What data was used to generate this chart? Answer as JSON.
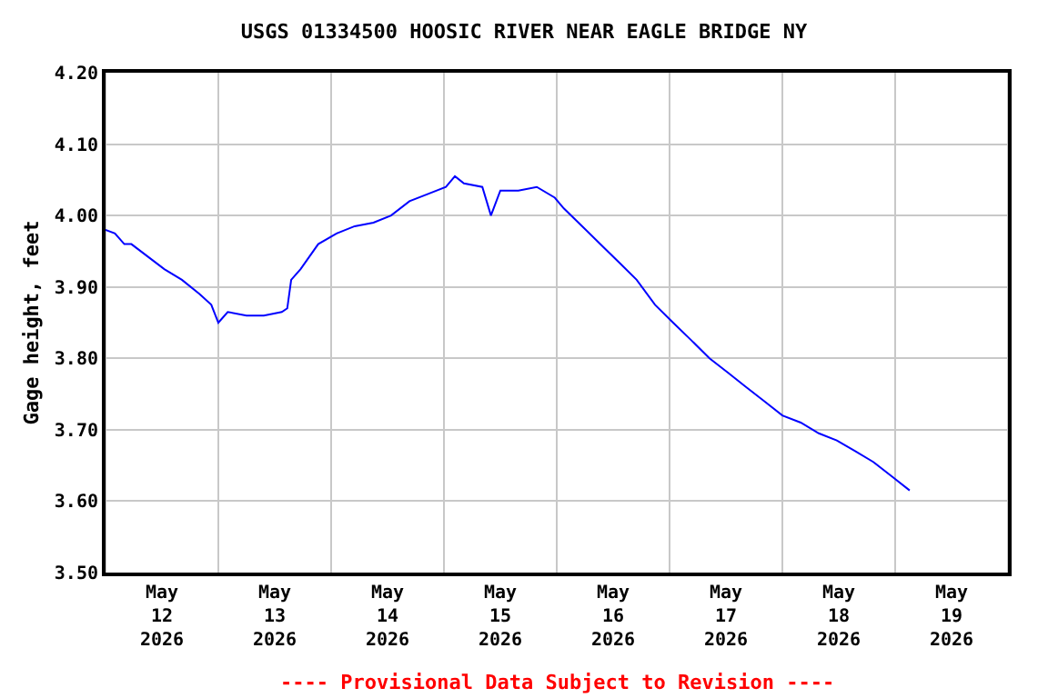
{
  "chart_data": {
    "type": "line",
    "title": "USGS 01334500 HOOSIC RIVER NEAR EAGLE BRIDGE NY",
    "ylabel": "Gage height, feet",
    "annotations": [
      "---- Provisional Data Subject to Revision ----"
    ],
    "x": [
      "2026-05-12T00:00",
      "2026-05-12T02:00",
      "2026-05-12T04:00",
      "2026-05-12T05:30",
      "2026-05-12T08:30",
      "2026-05-12T12:30",
      "2026-05-12T16:15",
      "2026-05-12T20:00",
      "2026-05-12T22:30",
      "2026-05-13T00:00",
      "2026-05-13T02:00",
      "2026-05-13T06:00",
      "2026-05-13T09:40",
      "2026-05-13T13:30",
      "2026-05-13T14:40",
      "2026-05-13T15:30",
      "2026-05-13T17:30",
      "2026-05-13T21:15",
      "2026-05-14T01:10",
      "2026-05-14T05:00",
      "2026-05-14T09:00",
      "2026-05-14T12:45",
      "2026-05-14T16:40",
      "2026-05-14T20:30",
      "2026-05-15T00:25",
      "2026-05-15T02:20",
      "2026-05-15T04:15",
      "2026-05-15T08:10",
      "2026-05-15T10:00",
      "2026-05-15T12:00",
      "2026-05-15T15:50",
      "2026-05-15T19:45",
      "2026-05-15T23:35",
      "2026-05-16T01:30",
      "2026-05-16T05:25",
      "2026-05-16T09:15",
      "2026-05-16T13:10",
      "2026-05-16T17:00",
      "2026-05-16T20:55",
      "2026-05-17T00:45",
      "2026-05-17T04:40",
      "2026-05-17T08:30",
      "2026-05-17T12:25",
      "2026-05-17T16:15",
      "2026-05-17T20:10",
      "2026-05-18T00:00",
      "2026-05-18T03:55",
      "2026-05-18T07:45",
      "2026-05-18T11:35",
      "2026-05-18T15:30",
      "2026-05-18T19:20",
      "2026-05-18T23:15",
      "2026-05-19T03:05"
    ],
    "series": [
      {
        "color": "#0000ff",
        "values": [
          3.98,
          3.975,
          3.96,
          3.96,
          3.945,
          3.925,
          3.91,
          3.89,
          3.875,
          3.85,
          3.865,
          3.86,
          3.86,
          3.865,
          3.87,
          3.91,
          3.925,
          3.96,
          3.975,
          3.985,
          3.99,
          4.0,
          4.02,
          4.03,
          4.04,
          4.055,
          4.045,
          4.04,
          4.0,
          4.035,
          4.035,
          4.04,
          4.025,
          4.01,
          3.985,
          3.96,
          3.935,
          3.91,
          3.875,
          3.85,
          3.825,
          3.8,
          3.78,
          3.76,
          3.74,
          3.72,
          3.71,
          3.695,
          3.685,
          3.67,
          3.655,
          3.635,
          3.615
        ]
      }
    ],
    "xlim": [
      "2026-05-12T00:00",
      "2026-05-20T00:00"
    ],
    "xticks": [
      {
        "value": "2026-05-12T00:00",
        "label": null
      },
      {
        "value": "2026-05-12T12:00",
        "label": "May\n12\n2026"
      },
      {
        "value": "2026-05-13T00:00",
        "label": null
      },
      {
        "value": "2026-05-13T12:00",
        "label": "May\n13\n2026"
      },
      {
        "value": "2026-05-14T00:00",
        "label": null
      },
      {
        "value": "2026-05-14T12:00",
        "label": "May\n14\n2026"
      },
      {
        "value": "2026-05-15T00:00",
        "label": null
      },
      {
        "value": "2026-05-15T12:00",
        "label": "May\n15\n2026"
      },
      {
        "value": "2026-05-16T00:00",
        "label": null
      },
      {
        "value": "2026-05-16T12:00",
        "label": "May\n16\n2026"
      },
      {
        "value": "2026-05-17T00:00",
        "label": null
      },
      {
        "value": "2026-05-17T12:00",
        "label": "May\n17\n2026"
      },
      {
        "value": "2026-05-18T00:00",
        "label": null
      },
      {
        "value": "2026-05-18T12:00",
        "label": "May\n18\n2026"
      },
      {
        "value": "2026-05-19T00:00",
        "label": null
      },
      {
        "value": "2026-05-19T12:00",
        "label": "May\n19\n2026"
      },
      {
        "value": "2026-05-20T00:00",
        "label": null
      }
    ],
    "ylim": [
      3.5,
      4.2
    ],
    "yticks": [
      {
        "value": 3.5,
        "label": "3.50"
      },
      {
        "value": 3.6,
        "label": "3.60"
      },
      {
        "value": 3.7,
        "label": "3.70"
      },
      {
        "value": 3.8,
        "label": "3.80"
      },
      {
        "value": 3.9,
        "label": "3.90"
      },
      {
        "value": 4.0,
        "label": "4.00"
      },
      {
        "value": 4.1,
        "label": "4.10"
      },
      {
        "value": 4.2,
        "label": "4.20"
      }
    ],
    "grid": true,
    "marker": "none",
    "line_style": "solid"
  }
}
